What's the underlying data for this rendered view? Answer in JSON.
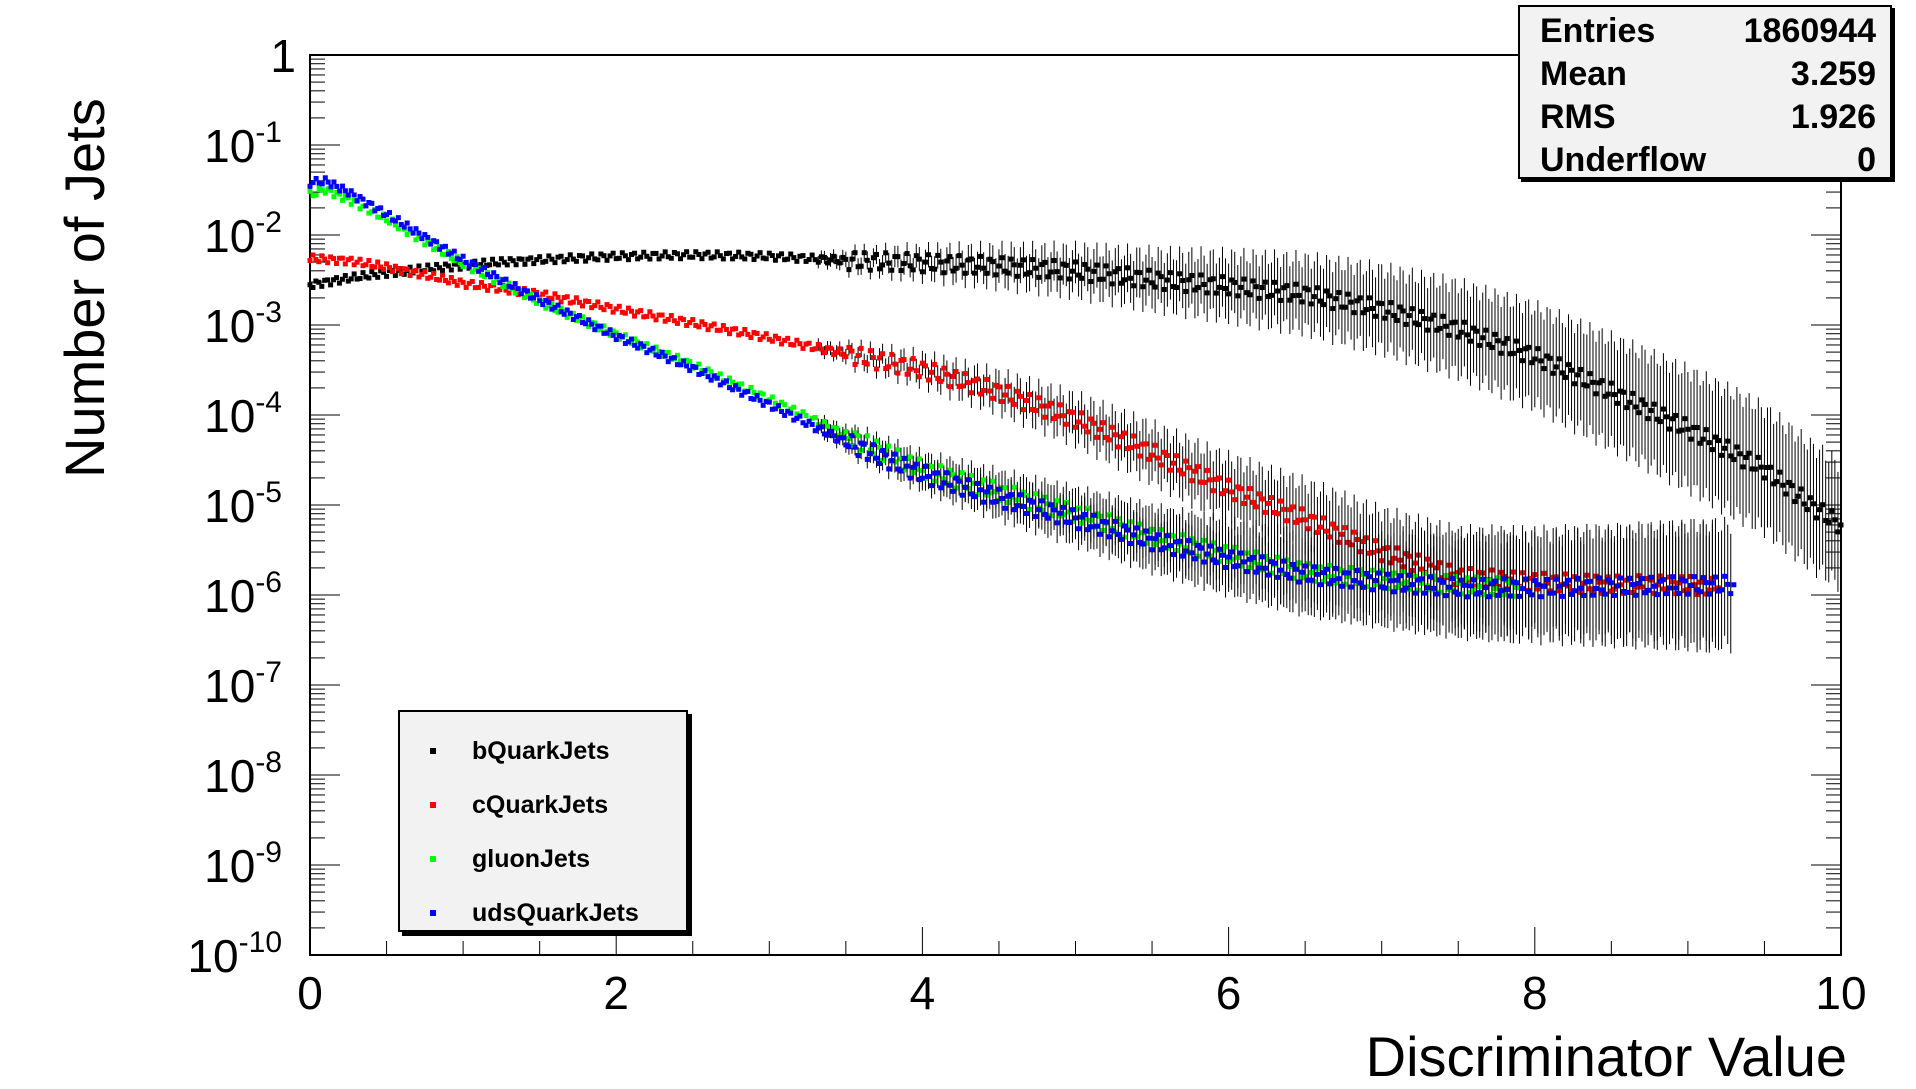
{
  "stats": {
    "rows": [
      {
        "label": "Entries",
        "value": "1860944"
      },
      {
        "label": "Mean",
        "value": "3.259"
      },
      {
        "label": "RMS",
        "value": "1.926"
      },
      {
        "label": "Underflow",
        "value": "0"
      }
    ]
  },
  "legend": [
    {
      "label": "bQuarkJets",
      "color": "#000000"
    },
    {
      "label": "cQuarkJets",
      "color": "#ff0000"
    },
    {
      "label": "gluonJets",
      "color": "#00ff00"
    },
    {
      "label": "udsQuarkJets",
      "color": "#0000ff"
    }
  ],
  "chart_data": {
    "type": "scatter",
    "xlabel": "Discriminator Value",
    "ylabel": "Number of Jets",
    "xlim": [
      0,
      10
    ],
    "ylim": [
      1e-10,
      1
    ],
    "y_scale": "log",
    "x_ticks": [
      "0",
      "2",
      "4",
      "6",
      "8",
      "10"
    ],
    "y_ticks": [
      {
        "base": "1",
        "exp": ""
      },
      {
        "base": "10",
        "exp": "-1"
      },
      {
        "base": "10",
        "exp": "-2"
      },
      {
        "base": "10",
        "exp": "-3"
      },
      {
        "base": "10",
        "exp": "-4"
      },
      {
        "base": "10",
        "exp": "-5"
      },
      {
        "base": "10",
        "exp": "-6"
      },
      {
        "base": "10",
        "exp": "-7"
      },
      {
        "base": "10",
        "exp": "-8"
      },
      {
        "base": "10",
        "exp": "-9"
      },
      {
        "base": "10",
        "exp": "-10"
      }
    ],
    "legend_position": "bottom-left",
    "stats_position": "top-right",
    "grid": false,
    "series": [
      {
        "name": "bQuarkJets",
        "color": "#000000",
        "x": [
          0.0,
          0.25,
          0.5,
          0.75,
          1.0,
          1.25,
          1.5,
          2.0,
          2.5,
          3.0,
          3.5,
          4.0,
          4.5,
          5.0,
          5.5,
          6.0,
          6.5,
          7.0,
          7.5,
          8.0,
          8.5,
          9.0,
          9.5,
          9.8,
          10.0
        ],
        "y": [
          0.0028,
          0.0033,
          0.0038,
          0.0042,
          0.0046,
          0.005,
          0.0053,
          0.0058,
          0.006,
          0.0058,
          0.0052,
          0.0049,
          0.0045,
          0.004,
          0.0032,
          0.0027,
          0.0022,
          0.0015,
          0.0009,
          0.00045,
          0.00018,
          7e-05,
          2.5e-05,
          1e-05,
          6e-06
        ]
      },
      {
        "name": "cQuarkJets",
        "color": "#ff0000",
        "x": [
          0.0,
          0.25,
          0.5,
          0.75,
          1.0,
          1.5,
          2.0,
          2.5,
          3.0,
          3.5,
          4.0,
          4.5,
          5.0,
          5.5,
          6.0,
          6.5,
          7.0,
          7.5,
          8.0,
          8.5,
          9.0,
          9.2
        ],
        "y": [
          0.0055,
          0.0052,
          0.0044,
          0.0036,
          0.0029,
          0.0022,
          0.0015,
          0.00105,
          0.00072,
          0.00048,
          0.00032,
          0.00018,
          9e-05,
          3.8e-05,
          1.5e-05,
          7e-06,
          3e-06,
          1.6e-06,
          1.4e-06,
          1.3e-06,
          1.3e-06,
          1.2e-06
        ]
      },
      {
        "name": "gluonJets",
        "color": "#00ff00",
        "x": [
          0.0,
          0.1,
          0.25,
          0.5,
          0.75,
          1.0,
          1.5,
          2.0,
          2.5,
          3.0,
          3.5,
          4.0,
          4.5,
          5.0,
          5.5,
          6.0,
          6.5,
          7.0,
          7.5,
          7.9
        ],
        "y": [
          0.028,
          0.032,
          0.025,
          0.015,
          0.0085,
          0.0048,
          0.0018,
          0.00078,
          0.00036,
          0.00015,
          6e-05,
          2.5e-05,
          1.4e-05,
          8e-06,
          4.5e-06,
          2.8e-06,
          1.8e-06,
          1.5e-06,
          1.3e-06,
          1.2e-06
        ]
      },
      {
        "name": "udsQuarkJets",
        "color": "#0000ff",
        "x": [
          0.0,
          0.1,
          0.25,
          0.5,
          0.75,
          1.0,
          1.5,
          2.0,
          2.5,
          3.0,
          3.5,
          4.0,
          4.5,
          5.0,
          5.5,
          6.0,
          6.5,
          7.0,
          7.5,
          8.0,
          9.3
        ],
        "y": [
          0.038,
          0.04,
          0.03,
          0.017,
          0.0095,
          0.0053,
          0.0019,
          0.00075,
          0.00033,
          0.00013,
          5e-05,
          2.2e-05,
          1.2e-05,
          7e-06,
          4e-06,
          2.5e-06,
          1.7e-06,
          1.4e-06,
          1.2e-06,
          1.2e-06,
          1.3e-06
        ]
      }
    ]
  }
}
